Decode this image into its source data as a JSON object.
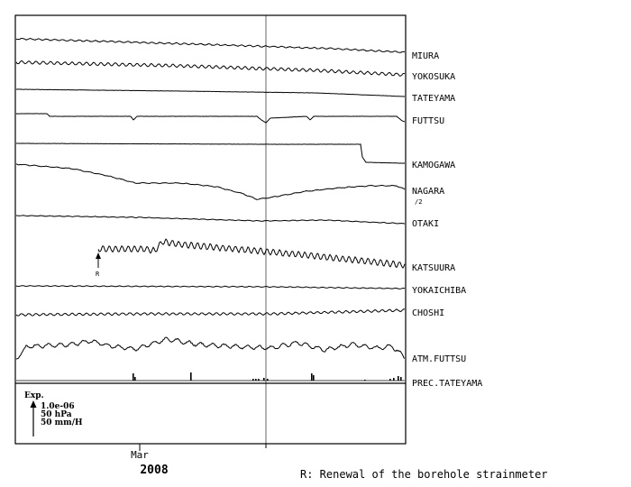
{
  "chart_data": {
    "type": "line",
    "title": "",
    "xlabel": "",
    "ylabel": "",
    "x_ticks": [
      {
        "label": "Mar"
      }
    ],
    "year": "2008",
    "scale": {
      "title": "Exp.",
      "lines": [
        "1.0e-06",
        "50 hPa",
        "50 mm/H"
      ]
    },
    "footnote": "R: Renewal of the borehole strainmeter",
    "renewal_marker": {
      "station": "KATSUURA",
      "label": "R"
    },
    "series": [
      {
        "name": "MIURA",
        "sublabel": ""
      },
      {
        "name": "YOKOSUKA",
        "sublabel": ""
      },
      {
        "name": "TATEYAMA",
        "sublabel": ""
      },
      {
        "name": "FUTTSU",
        "sublabel": ""
      },
      {
        "name": "KAMOGAWA",
        "sublabel": ""
      },
      {
        "name": "NAGARA",
        "sublabel": "/2"
      },
      {
        "name": "OTAKI",
        "sublabel": ""
      },
      {
        "name": "KATSUURA",
        "sublabel": ""
      },
      {
        "name": "YOKAICHIBA",
        "sublabel": ""
      },
      {
        "name": "CHOSHI",
        "sublabel": ""
      },
      {
        "name": "ATM.FUTTSU",
        "sublabel": ""
      },
      {
        "name": "PREC.TATEYAMA",
        "sublabel": ""
      }
    ]
  }
}
